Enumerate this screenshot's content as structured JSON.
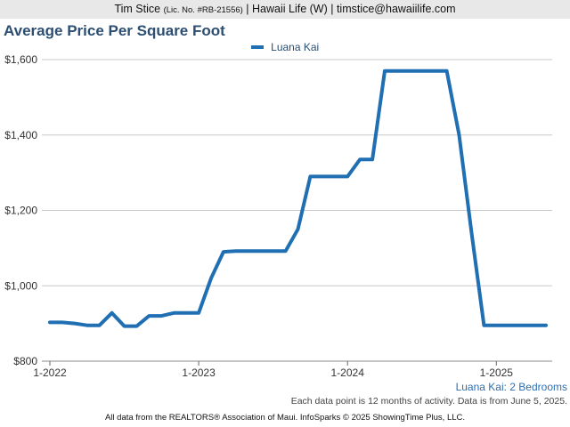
{
  "header": {
    "agent_name": "Tim Stice",
    "license": "(Lic. No. #RB-21556)",
    "rest": "| Hawaii Life (W) | timstice@hawaiilife.com"
  },
  "footer": {
    "subtitle": "Luana Kai: 2 Bedrooms",
    "note": "Each data point is 12 months of activity. Data is from June 5, 2025.",
    "source": "All data from the REALTORS® Association of Maui. InfoSparks © 2025 ShowingTime Plus, LLC."
  },
  "colors": {
    "series": "#1f6fb2",
    "title": "#2c4e72",
    "grid": "#c8c8c8"
  },
  "chart_data": {
    "type": "line",
    "title": "Average Price Per Square Foot",
    "xlabel": "",
    "ylabel": "",
    "ylim": [
      800,
      1600
    ],
    "y_ticks": [
      800,
      1000,
      1200,
      1400,
      1600
    ],
    "y_tick_labels": [
      "$800",
      "$1,000",
      "$1,200",
      "$1,400",
      "$1,600"
    ],
    "x_ticks": [
      "2022-01",
      "2023-01",
      "2024-01",
      "2025-01"
    ],
    "x_tick_labels": [
      "1-2022",
      "1-2023",
      "1-2024",
      "1-2025"
    ],
    "x_range": [
      "2022-01",
      "2025-05"
    ],
    "legend_position": "top-center",
    "grid": true,
    "series": [
      {
        "name": "Luana Kai",
        "points": [
          [
            "2022-01",
            903
          ],
          [
            "2022-02",
            903
          ],
          [
            "2022-03",
            900
          ],
          [
            "2022-04",
            895
          ],
          [
            "2022-05",
            895
          ],
          [
            "2022-06",
            928
          ],
          [
            "2022-07",
            893
          ],
          [
            "2022-08",
            893
          ],
          [
            "2022-09",
            920
          ],
          [
            "2022-10",
            920
          ],
          [
            "2022-11",
            928
          ],
          [
            "2022-12",
            928
          ],
          [
            "2023-01",
            928
          ],
          [
            "2023-02",
            1020
          ],
          [
            "2023-03",
            1090
          ],
          [
            "2023-04",
            1092
          ],
          [
            "2023-05",
            1092
          ],
          [
            "2023-06",
            1092
          ],
          [
            "2023-07",
            1092
          ],
          [
            "2023-08",
            1092
          ],
          [
            "2023-09",
            1150
          ],
          [
            "2023-10",
            1290
          ],
          [
            "2023-11",
            1290
          ],
          [
            "2023-12",
            1290
          ],
          [
            "2024-01",
            1290
          ],
          [
            "2024-02",
            1335
          ],
          [
            "2024-03",
            1335
          ],
          [
            "2024-04",
            1570
          ],
          [
            "2024-05",
            1570
          ],
          [
            "2024-06",
            1570
          ],
          [
            "2024-07",
            1570
          ],
          [
            "2024-08",
            1570
          ],
          [
            "2024-09",
            1570
          ],
          [
            "2024-10",
            1400
          ],
          [
            "2024-11",
            1140
          ],
          [
            "2024-12",
            895
          ],
          [
            "2025-01",
            895
          ],
          [
            "2025-02",
            895
          ],
          [
            "2025-03",
            895
          ],
          [
            "2025-04",
            895
          ],
          [
            "2025-05",
            895
          ]
        ]
      }
    ]
  }
}
